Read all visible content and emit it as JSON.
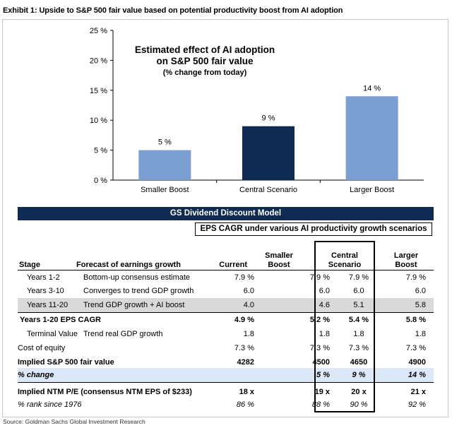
{
  "exhibit_title": "Exhibit 1: Upside to S&P 500 fair value based on potential productivity boost from AI adoption",
  "chart_data": {
    "type": "bar",
    "title_line1": "Estimated effect of AI adoption",
    "title_line2": "on S&P 500 fair value",
    "title_line3": "(% change from today)",
    "categories": [
      "Smaller Boost",
      "Central Scenario",
      "Larger Boost"
    ],
    "values": [
      5,
      9,
      14
    ],
    "data_labels": [
      "5 %",
      "9 %",
      "14 %"
    ],
    "bar_colors": [
      "#7b9fd0",
      "#0f2b52",
      "#7b9fd0"
    ],
    "ylim": [
      0,
      25
    ],
    "yticks": [
      0,
      5,
      10,
      15,
      20,
      25
    ],
    "ytick_labels": [
      "0 %",
      "5 %",
      "10 %",
      "15 %",
      "20 %",
      "25 %"
    ],
    "grid": false,
    "xlabel": "",
    "ylabel": ""
  },
  "table": {
    "banner": "GS Dividend Discount Model",
    "eps_header": "EPS CAGR under various AI productivity growth scenarios",
    "headers": {
      "stage": "Stage",
      "forecast": "Forecast of earnings growth",
      "current": "Current",
      "smaller_l1": "Smaller",
      "smaller_l2": "Boost",
      "central_l1": "Central",
      "central_l2": "Scenario",
      "larger_l1": "Larger",
      "larger_l2": "Boost"
    },
    "rows": {
      "y12": {
        "stage": "Years 1-2",
        "forecast": "Bottom-up consensus estimate",
        "current": "7.9 %",
        "smaller": "7.9 %",
        "central": "7.9 %",
        "larger": "7.9 %"
      },
      "y310": {
        "stage": "Years 3-10",
        "forecast": "Converges to trend GDP growth",
        "current": "6.0",
        "smaller": "6.0",
        "central": "6.0",
        "larger": "6.0"
      },
      "y1120": {
        "stage": "Years 11-20",
        "forecast": "Trend GDP growth + AI boost",
        "current": "4.0",
        "smaller": "4.6",
        "central": "5.1",
        "larger": "5.8"
      },
      "cagr": {
        "stage": "Years 1-20 EPS CAGR",
        "current": "4.9 %",
        "smaller": "5.2 %",
        "central": "5.4 %",
        "larger": "5.8 %"
      },
      "terminal": {
        "stage": "Terminal Value",
        "forecast": "Trend real GDP growth",
        "current": "1.8",
        "smaller": "1.8",
        "central": "1.8",
        "larger": "1.8"
      },
      "coe": {
        "stage": "Cost of equity",
        "current": "7.3 %",
        "smaller": "7.3 %",
        "central": "7.3 %",
        "larger": "7.3 %"
      },
      "fair": {
        "stage": "Implied S&P 500 fair value",
        "current": "4282",
        "smaller": "4500",
        "central": "4650",
        "larger": "4900"
      },
      "change": {
        "stage": "% change",
        "current": "",
        "smaller": "5 %",
        "central": "9 %",
        "larger": "14 %"
      },
      "pe": {
        "stage": "Implied NTM P/E (consensus NTM EPS of $233)",
        "current": "18 x",
        "smaller": "19 x",
        "central": "20 x",
        "larger": "21 x"
      },
      "rank": {
        "stage": "% rank since 1976",
        "current": "86 %",
        "smaller": "88 %",
        "central": "90 %",
        "larger": "92 %"
      }
    }
  },
  "source": "Source: Goldman Sachs Global Investment Research"
}
